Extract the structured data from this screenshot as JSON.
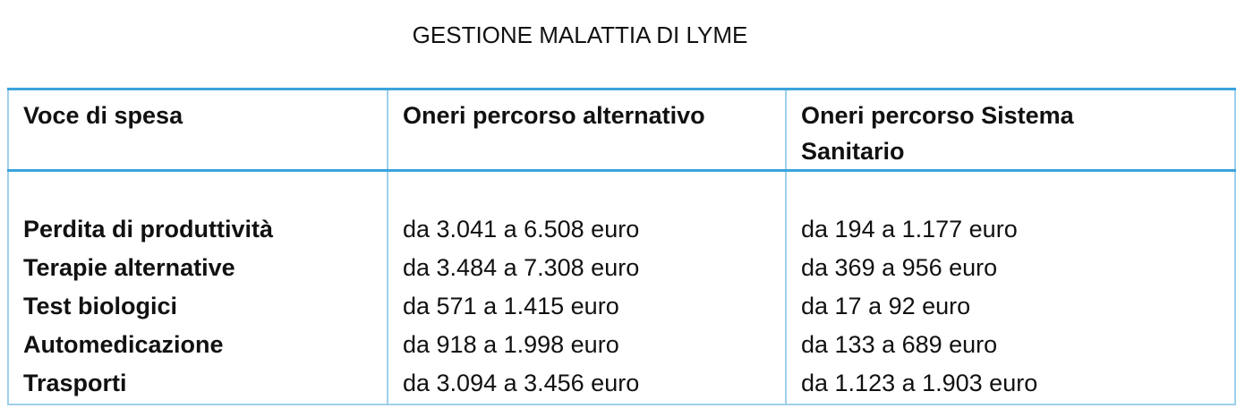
{
  "title": "GESTIONE MALATTIA DI LYME",
  "table": {
    "header": [
      "Voce di spesa",
      "Oneri percorso alternativo",
      "Oneri percorso Sistema Sanitario"
    ],
    "rows": [
      [
        "Perdita di produttività",
        "da 3.041 a 6.508 euro",
        "da 194 a 1.177 euro"
      ],
      [
        "Terapie alternative",
        "da 3.484 a 7.308 euro",
        "da 369 a 956 euro"
      ],
      [
        "Test biologici",
        "da 571 a 1.415 euro",
        "da 17 a 92 euro"
      ],
      [
        "Automedicazione",
        "da 918 a 1.998 euro",
        "da 133 a 689 euro"
      ],
      [
        "Trasporti",
        "da 3.094 a 3.456 euro",
        "da 1.123 a 1.903 euro"
      ]
    ]
  }
}
